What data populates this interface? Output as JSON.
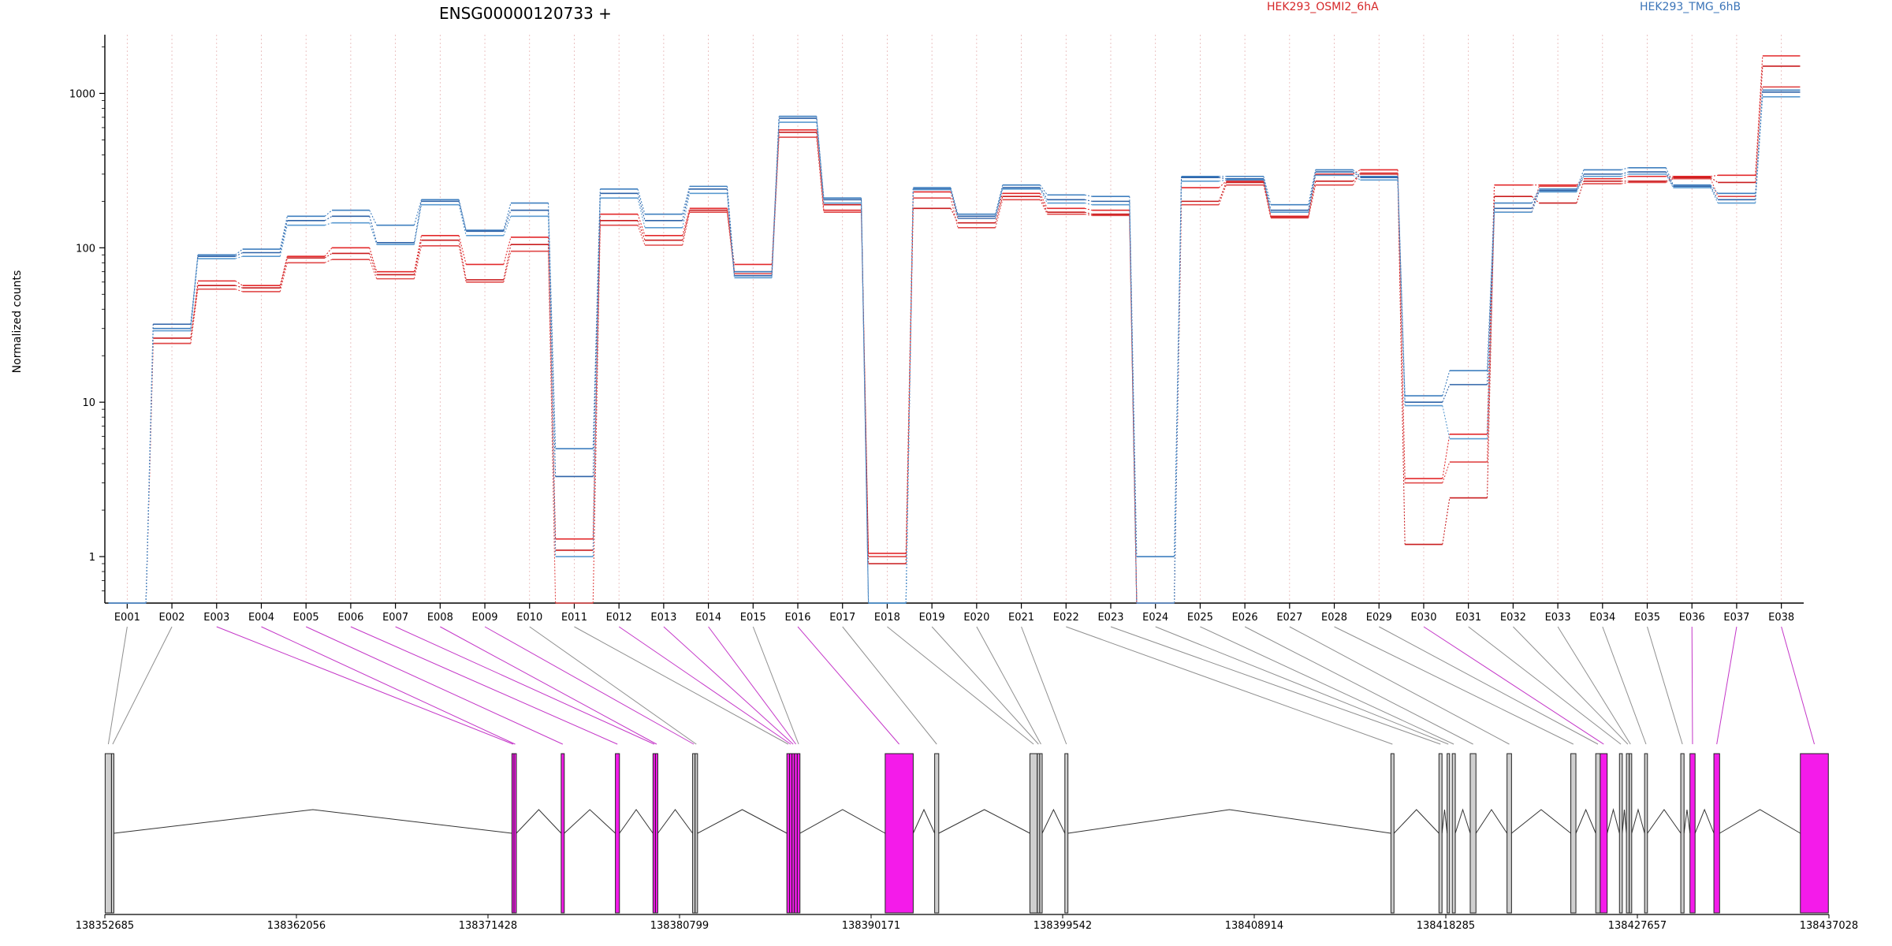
{
  "chart_data": {
    "type": "line",
    "title": "ENSG00000120733 +",
    "ylabel": "Normalized counts",
    "yscale": "log",
    "ylim": [
      0.5,
      2400
    ],
    "yticks": [
      "1",
      "10",
      "100",
      "1000"
    ],
    "grid": "vertical dotted at exon centers",
    "legend_placement": "top",
    "categories": [
      "E001",
      "E002",
      "E003",
      "E004",
      "E005",
      "E006",
      "E007",
      "E008",
      "E009",
      "E010",
      "E011",
      "E012",
      "E013",
      "E014",
      "E015",
      "E016",
      "E017",
      "E018",
      "E019",
      "E020",
      "E021",
      "E022",
      "E023",
      "E024",
      "E025",
      "E026",
      "E027",
      "E028",
      "E029",
      "E030",
      "E031",
      "E032",
      "E033",
      "E034",
      "E035",
      "E036",
      "E037",
      "E038"
    ],
    "legend": [
      {
        "name": "HEK293_OSMI2_6hA",
        "color": "#d62728"
      },
      {
        "name": "HEK293_TMG_6hB",
        "color": "#3b74b8"
      }
    ],
    "series": [
      {
        "group": "HEK293_OSMI2_6hA",
        "color": "#e3292b",
        "values": [
          0.5,
          24,
          61,
          57,
          88,
          100,
          70,
          120,
          78,
          117,
          1.3,
          165,
          120,
          180,
          78,
          580,
          175,
          1.05,
          230,
          155,
          225,
          180,
          175,
          0.5,
          245,
          270,
          160,
          300,
          320,
          3.2,
          6.2,
          255,
          255,
          280,
          290,
          290,
          295,
          1750
        ]
      },
      {
        "group": "HEK293_OSMI2_6hA",
        "color": "#c91d1f",
        "values": [
          0.5,
          26,
          57,
          55,
          86,
          92,
          67,
          112,
          62,
          105,
          1.1,
          150,
          112,
          175,
          70,
          560,
          190,
          0.9,
          180,
          145,
          215,
          170,
          165,
          0.5,
          200,
          265,
          158,
          270,
          300,
          1.2,
          2.4,
          215,
          195,
          270,
          270,
          285,
          265,
          1500
        ]
      },
      {
        "group": "HEK293_OSMI2_6hA",
        "color": "#e04848",
        "values": [
          0.5,
          24,
          54,
          52,
          80,
          84,
          63,
          103,
          60,
          95,
          0.5,
          140,
          104,
          170,
          68,
          520,
          170,
          1.0,
          210,
          135,
          205,
          165,
          162,
          0.5,
          190,
          255,
          156,
          255,
          305,
          3.0,
          4.1,
          170,
          250,
          260,
          265,
          280,
          215,
          1100
        ]
      },
      {
        "group": "HEK293_TMG_6hB",
        "color": "#3f7fbf",
        "values": [
          0.5,
          30,
          90,
          98,
          160,
          175,
          140,
          205,
          130,
          195,
          5.0,
          240,
          165,
          250,
          70,
          710,
          210,
          0.5,
          245,
          165,
          255,
          220,
          215,
          1.0,
          290,
          290,
          190,
          320,
          290,
          11,
          16,
          195,
          240,
          320,
          330,
          255,
          225,
          1050
        ]
      },
      {
        "group": "HEK293_TMG_6hB",
        "color": "#2f63a8",
        "values": [
          0.5,
          32,
          88,
          93,
          150,
          160,
          108,
          200,
          128,
          175,
          3.3,
          225,
          150,
          240,
          66,
          690,
          205,
          0.5,
          240,
          160,
          245,
          205,
          200,
          0.5,
          285,
          280,
          175,
          310,
          285,
          10,
          13,
          180,
          235,
          300,
          310,
          250,
          205,
          1020
        ]
      },
      {
        "group": "HEK293_TMG_6hB",
        "color": "#5a9ad0",
        "values": [
          0.5,
          29,
          85,
          88,
          140,
          145,
          105,
          190,
          120,
          160,
          1.0,
          210,
          135,
          225,
          64,
          650,
          195,
          0.5,
          238,
          155,
          240,
          195,
          190,
          0.5,
          270,
          275,
          170,
          295,
          275,
          9.5,
          5.8,
          170,
          230,
          290,
          300,
          245,
          195,
          950
        ]
      }
    ],
    "genomic_coordinates": [
      "138352685",
      "138362056",
      "138371428",
      "138380799",
      "138390171",
      "138399542",
      "138408914",
      "138418285",
      "138427657",
      "138437028"
    ],
    "gene_model": {
      "coord_start": 138352685,
      "coord_end": 138437028,
      "highlight_color": "#f41bea",
      "exons": [
        {
          "id": "E001",
          "start": 138352700,
          "end": 138353010,
          "highlight": false
        },
        {
          "id": "E002",
          "start": 138353010,
          "end": 138353070,
          "highlight": false
        },
        {
          "id": "E003",
          "start": 138372600,
          "end": 138372700,
          "highlight": true
        },
        {
          "id": "E004",
          "start": 138372700,
          "end": 138372780,
          "highlight": true
        },
        {
          "id": "E005",
          "start": 138375010,
          "end": 138375160,
          "highlight": true
        },
        {
          "id": "E006",
          "start": 138377660,
          "end": 138377860,
          "highlight": true
        },
        {
          "id": "E007",
          "start": 138379500,
          "end": 138379620,
          "highlight": true
        },
        {
          "id": "E008",
          "start": 138379620,
          "end": 138379700,
          "highlight": true
        },
        {
          "id": "E009",
          "start": 138381440,
          "end": 138381560,
          "highlight": false
        },
        {
          "id": "E010",
          "start": 138381560,
          "end": 138381680,
          "highlight": false
        },
        {
          "id": "E011",
          "start": 138386050,
          "end": 138386180,
          "highlight": true
        },
        {
          "id": "E012",
          "start": 138386180,
          "end": 138386300,
          "highlight": true
        },
        {
          "id": "E013",
          "start": 138386300,
          "end": 138386420,
          "highlight": true
        },
        {
          "id": "E014",
          "start": 138386420,
          "end": 138386560,
          "highlight": true
        },
        {
          "id": "E015",
          "start": 138386560,
          "end": 138386690,
          "highlight": true
        },
        {
          "id": "E016",
          "start": 138390860,
          "end": 138392230,
          "highlight": true
        },
        {
          "id": "E017",
          "start": 138393280,
          "end": 138393480,
          "highlight": false
        },
        {
          "id": "E018",
          "start": 138397940,
          "end": 138398300,
          "highlight": false
        },
        {
          "id": "E019",
          "start": 138398300,
          "end": 138398420,
          "highlight": false
        },
        {
          "id": "E020",
          "start": 138398420,
          "end": 138398540,
          "highlight": false
        },
        {
          "id": "E021",
          "start": 138399650,
          "end": 138399800,
          "highlight": false
        },
        {
          "id": "E022",
          "start": 138415600,
          "end": 138415750,
          "highlight": false
        },
        {
          "id": "E023",
          "start": 138417950,
          "end": 138418100,
          "highlight": false
        },
        {
          "id": "E024",
          "start": 138418350,
          "end": 138418470,
          "highlight": false
        },
        {
          "id": "E025",
          "start": 138418600,
          "end": 138418750,
          "highlight": false
        },
        {
          "id": "E026",
          "start": 138419480,
          "end": 138419760,
          "highlight": false
        },
        {
          "id": "E027",
          "start": 138421280,
          "end": 138421500,
          "highlight": false
        },
        {
          "id": "E028",
          "start": 138424400,
          "end": 138424650,
          "highlight": false
        },
        {
          "id": "E029",
          "start": 138425620,
          "end": 138425840,
          "highlight": false
        },
        {
          "id": "E030",
          "start": 138425840,
          "end": 138426180,
          "highlight": true
        },
        {
          "id": "E031",
          "start": 138426780,
          "end": 138426920,
          "highlight": false
        },
        {
          "id": "E032",
          "start": 138427120,
          "end": 138427260,
          "highlight": false
        },
        {
          "id": "E033",
          "start": 138427260,
          "end": 138427380,
          "highlight": false
        },
        {
          "id": "E034",
          "start": 138428010,
          "end": 138428150,
          "highlight": false
        },
        {
          "id": "E035",
          "start": 138429780,
          "end": 138429940,
          "highlight": false
        },
        {
          "id": "E036",
          "start": 138430230,
          "end": 138430480,
          "highlight": true
        },
        {
          "id": "E037",
          "start": 138431400,
          "end": 138431680,
          "highlight": true
        },
        {
          "id": "E038",
          "start": 138435630,
          "end": 138437000,
          "highlight": true
        }
      ],
      "connectors": [
        "gray",
        "gray",
        "magenta",
        "magenta",
        "magenta",
        "magenta",
        "magenta",
        "magenta",
        "magenta",
        "gray",
        "gray",
        "magenta",
        "magenta",
        "magenta",
        "gray",
        "magenta",
        "gray",
        "gray",
        "gray",
        "gray",
        "gray",
        "gray",
        "gray",
        "gray",
        "gray",
        "gray",
        "gray",
        "gray",
        "gray",
        "magenta",
        "gray",
        "gray",
        "gray",
        "gray",
        "gray",
        "magenta",
        "magenta",
        "magenta"
      ]
    }
  }
}
